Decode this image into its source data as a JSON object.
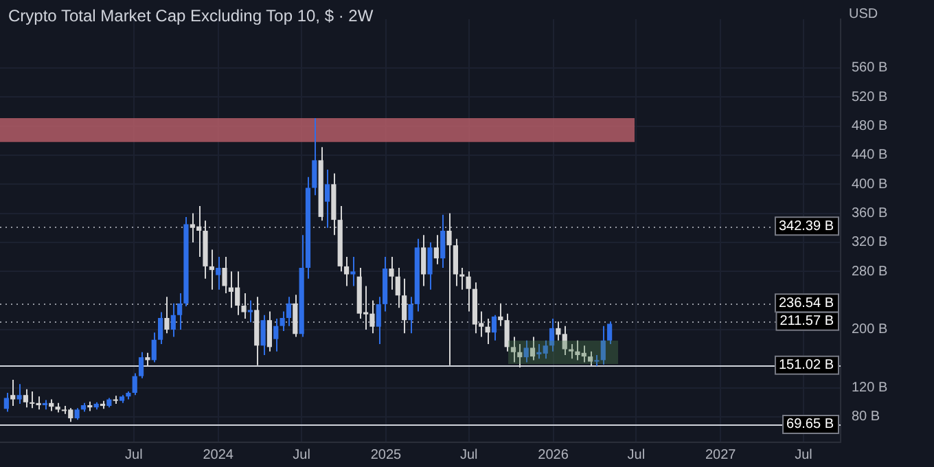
{
  "chart_data": {
    "type": "candlestick",
    "title": "Crypto Total Market Cap Excluding Top 10, $ · 2W",
    "ylabel": "USD",
    "x": [
      "2022-09-26",
      "2022-10-10",
      "2022-10-24",
      "2022-11-07",
      "2022-11-21",
      "2022-12-05",
      "2022-12-19",
      "2023-01-02",
      "2023-01-16",
      "2023-01-30",
      "2023-02-13",
      "2023-02-27",
      "2023-03-13",
      "2023-03-27",
      "2023-04-10",
      "2023-04-24",
      "2023-05-08",
      "2023-05-22",
      "2023-06-05",
      "2023-06-19",
      "2023-07-03",
      "2023-07-17",
      "2023-07-31",
      "2023-08-14",
      "2023-08-28",
      "2023-09-11",
      "2023-09-25",
      "2023-10-09",
      "2023-10-23",
      "2023-11-06",
      "2023-11-20",
      "2023-12-04",
      "2023-12-18",
      "2024-01-01",
      "2024-01-15",
      "2024-01-29",
      "2024-02-12",
      "2024-02-26",
      "2024-03-11",
      "2024-03-25",
      "2024-04-08",
      "2024-04-22",
      "2024-05-06",
      "2024-05-20",
      "2024-06-03",
      "2024-06-17",
      "2024-07-01",
      "2024-07-15",
      "2024-07-29",
      "2024-08-12",
      "2024-08-26",
      "2024-09-09",
      "2024-09-23",
      "2024-10-07",
      "2024-10-21",
      "2024-11-04",
      "2024-11-18",
      "2024-12-02",
      "2024-12-16",
      "2024-12-30",
      "2025-01-13",
      "2025-01-27",
      "2025-02-10",
      "2025-02-24",
      "2025-03-10",
      "2025-03-24",
      "2025-04-07",
      "2025-04-21",
      "2025-05-05",
      "2025-05-19",
      "2025-06-02",
      "2025-06-16",
      "2025-06-30",
      "2025-07-14",
      "2025-07-28",
      "2025-08-11",
      "2025-08-25",
      "2025-09-08",
      "2025-09-22",
      "2025-10-06",
      "2025-10-20",
      "2025-11-03",
      "2025-11-17",
      "2025-12-01",
      "2025-12-15",
      "2025-12-29",
      "2026-01-12",
      "2026-01-26",
      "2026-02-09",
      "2026-02-23",
      "2026-03-09",
      "2026-03-23",
      "2026-04-06",
      "2026-04-20",
      "2026-05-04"
    ],
    "ohlc": [
      [
        91,
        113,
        87,
        106
      ],
      [
        110,
        131,
        95,
        104
      ],
      [
        104,
        125,
        98,
        110
      ],
      [
        110,
        118,
        93,
        100
      ],
      [
        100,
        115,
        92,
        98
      ],
      [
        99,
        108,
        90,
        96
      ],
      [
        96,
        103,
        90,
        99
      ],
      [
        99,
        104,
        88,
        94
      ],
      [
        94,
        99,
        86,
        90
      ],
      [
        90,
        95,
        84,
        88
      ],
      [
        90,
        92,
        73,
        78
      ],
      [
        78,
        92,
        76,
        90
      ],
      [
        90,
        99,
        87,
        96
      ],
      [
        96,
        101,
        88,
        93
      ],
      [
        93,
        100,
        90,
        98
      ],
      [
        98,
        102,
        91,
        95
      ],
      [
        95,
        106,
        93,
        104
      ],
      [
        104,
        109,
        98,
        102
      ],
      [
        102,
        110,
        99,
        108
      ],
      [
        108,
        115,
        104,
        113
      ],
      [
        113,
        140,
        110,
        136
      ],
      [
        136,
        169,
        133,
        162
      ],
      [
        162,
        168,
        150,
        158
      ],
      [
        158,
        196,
        155,
        186
      ],
      [
        186,
        224,
        180,
        216
      ],
      [
        216,
        245,
        195,
        200
      ],
      [
        200,
        236,
        190,
        220
      ],
      [
        220,
        250,
        200,
        236
      ],
      [
        236,
        355,
        232,
        345
      ],
      [
        345,
        360,
        320,
        340
      ],
      [
        342,
        370,
        300,
        336
      ],
      [
        336,
        350,
        270,
        287
      ],
      [
        287,
        310,
        255,
        282
      ],
      [
        275,
        300,
        255,
        285
      ],
      [
        285,
        300,
        250,
        260
      ],
      [
        258,
        280,
        230,
        252
      ],
      [
        258,
        280,
        220,
        233
      ],
      [
        233,
        250,
        215,
        224
      ],
      [
        224,
        240,
        210,
        227
      ],
      [
        227,
        245,
        151,
        178
      ],
      [
        178,
        220,
        165,
        213
      ],
      [
        213,
        225,
        170,
        176
      ],
      [
        187,
        215,
        170,
        205
      ],
      [
        205,
        225,
        198,
        216
      ],
      [
        216,
        245,
        205,
        236
      ],
      [
        236,
        248,
        190,
        194
      ],
      [
        194,
        330,
        190,
        285
      ],
      [
        285,
        410,
        270,
        395
      ],
      [
        395,
        491,
        385,
        433
      ],
      [
        433,
        451,
        350,
        355
      ],
      [
        376,
        420,
        340,
        400
      ],
      [
        400,
        415,
        330,
        351
      ],
      [
        351,
        370,
        280,
        287
      ],
      [
        287,
        300,
        260,
        276
      ],
      [
        276,
        300,
        260,
        280
      ],
      [
        273,
        285,
        215,
        222
      ],
      [
        224,
        260,
        200,
        221
      ],
      [
        222,
        240,
        195,
        204
      ],
      [
        204,
        245,
        180,
        235
      ],
      [
        235,
        300,
        225,
        284
      ],
      [
        284,
        300,
        255,
        273
      ],
      [
        273,
        285,
        230,
        247
      ],
      [
        247,
        270,
        195,
        213
      ],
      [
        213,
        245,
        195,
        235
      ],
      [
        235,
        325,
        225,
        313
      ],
      [
        313,
        330,
        260,
        276
      ],
      [
        276,
        320,
        255,
        313
      ],
      [
        313,
        330,
        290,
        298
      ],
      [
        298,
        358,
        285,
        336
      ],
      [
        336,
        360,
        151,
        316
      ],
      [
        316,
        325,
        260,
        276
      ],
      [
        276,
        285,
        255,
        273
      ],
      [
        273,
        280,
        225,
        256
      ],
      [
        256,
        265,
        195,
        207
      ],
      [
        209,
        225,
        190,
        204
      ],
      [
        204,
        215,
        180,
        196
      ],
      [
        196,
        220,
        185,
        218
      ],
      [
        218,
        236,
        205,
        213
      ],
      [
        213,
        222,
        170,
        176
      ],
      [
        176,
        190,
        155,
        169
      ],
      [
        169,
        180,
        148,
        162
      ],
      [
        162,
        185,
        155,
        175
      ],
      [
        175,
        190,
        158,
        163
      ],
      [
        166,
        180,
        160,
        169
      ],
      [
        167,
        185,
        160,
        178
      ],
      [
        178,
        215,
        170,
        202
      ],
      [
        202,
        211,
        185,
        193
      ],
      [
        194,
        205,
        165,
        173
      ],
      [
        173,
        180,
        160,
        170
      ],
      [
        170,
        185,
        158,
        165
      ],
      [
        168,
        178,
        155,
        163
      ],
      [
        163,
        170,
        150,
        156
      ],
      [
        156,
        165,
        150,
        158
      ],
      [
        158,
        205,
        152,
        185
      ],
      [
        185,
        211,
        180,
        208
      ]
    ],
    "colors": [
      "#2f6fe8",
      "#d6d6d6",
      "#2f6fe8",
      "#d6d6d6",
      "#d6d6d6",
      "#d6d6d6",
      "#2f6fe8",
      "#d6d6d6",
      "#d6d6d6",
      "#d6d6d6",
      "#d6d6d6",
      "#2f6fe8",
      "#2f6fe8",
      "#d6d6d6",
      "#2f6fe8",
      "#d6d6d6",
      "#2f6fe8",
      "#d6d6d6",
      "#2f6fe8",
      "#2f6fe8",
      "#2f6fe8",
      "#2f6fe8",
      "#d6d6d6",
      "#2f6fe8",
      "#2f6fe8",
      "#d6d6d6",
      "#2f6fe8",
      "#2f6fe8",
      "#2f6fe8",
      "#d6d6d6",
      "#d6d6d6",
      "#d6d6d6",
      "#d6d6d6",
      "#2f6fe8",
      "#d6d6d6",
      "#d6d6d6",
      "#d6d6d6",
      "#d6d6d6",
      "#2f6fe8",
      "#d6d6d6",
      "#2f6fe8",
      "#d6d6d6",
      "#2f6fe8",
      "#2f6fe8",
      "#2f6fe8",
      "#d6d6d6",
      "#2f6fe8",
      "#2f6fe8",
      "#2f6fe8",
      "#d6d6d6",
      "#2f6fe8",
      "#d6d6d6",
      "#d6d6d6",
      "#d6d6d6",
      "#2f6fe8",
      "#d6d6d6",
      "#d6d6d6",
      "#d6d6d6",
      "#2f6fe8",
      "#2f6fe8",
      "#d6d6d6",
      "#d6d6d6",
      "#d6d6d6",
      "#2f6fe8",
      "#2f6fe8",
      "#d6d6d6",
      "#2f6fe8",
      "#d6d6d6",
      "#2f6fe8",
      "#d6d6d6",
      "#d6d6d6",
      "#d6d6d6",
      "#d6d6d6",
      "#d6d6d6",
      "#d6d6d6",
      "#d6d6d6",
      "#2f6fe8",
      "#d6d6d6",
      "#d6d6d6",
      "#d6d6d6",
      "#d6d6d6",
      "#2f6fe8",
      "#d6d6d6",
      "#2f6fe8",
      "#2f6fe8",
      "#2f6fe8",
      "#d6d6d6",
      "#d6d6d6",
      "#d6d6d6",
      "#d6d6d6",
      "#d6d6d6",
      "#d6d6d6",
      "#2f6fe8",
      "#2f6fe8",
      "#2f6fe8"
    ],
    "xlim": [
      "2022-09-12",
      "2027-09-20"
    ],
    "xticks": [
      {
        "value": "2023-07-01",
        "label": "Jul"
      },
      {
        "value": "2024-01-01",
        "label": "2024"
      },
      {
        "value": "2024-07-01",
        "label": "Jul"
      },
      {
        "value": "2025-01-01",
        "label": "2025"
      },
      {
        "value": "2025-07-01",
        "label": "Jul"
      },
      {
        "value": "2026-01-01",
        "label": "2026"
      },
      {
        "value": "2026-07-01",
        "label": "Jul"
      },
      {
        "value": "2027-01-01",
        "label": "2027"
      },
      {
        "value": "2027-07-01",
        "label": "Jul"
      }
    ],
    "ylim": [
      45,
      627
    ],
    "yticks": [
      {
        "value": 80,
        "label": "80 B"
      },
      {
        "value": 120,
        "label": "120 B"
      },
      {
        "value": 200,
        "label": "200 B"
      },
      {
        "value": 280,
        "label": "280 B"
      },
      {
        "value": 320,
        "label": "320 B"
      },
      {
        "value": 360,
        "label": "360 B"
      },
      {
        "value": 400,
        "label": "400 B"
      },
      {
        "value": 440,
        "label": "440 B"
      },
      {
        "value": 480,
        "label": "480 B"
      },
      {
        "value": 520,
        "label": "520 B"
      },
      {
        "value": 560,
        "label": "560 B"
      }
    ],
    "ref_lines": [
      {
        "axis": "y",
        "value": 342.39,
        "label": "342.39 B",
        "line_style": "dotted",
        "color": "#9598a1"
      },
      {
        "axis": "y",
        "value": 236.54,
        "label": "236.54 B",
        "line_style": "dotted",
        "color": "#9598a1"
      },
      {
        "axis": "y",
        "value": 211.57,
        "label": "211.57 B",
        "line_style": "dotted",
        "color": "#9598a1"
      },
      {
        "axis": "y",
        "value": 151.02,
        "label": "151.02 B",
        "line_style": "solid",
        "color": "#d1d4dc"
      },
      {
        "axis": "y",
        "value": 69.65,
        "label": "69.65 B",
        "line_style": "solid",
        "color": "#d1d4dc"
      }
    ],
    "bands": [
      {
        "axis": "y",
        "from": 458,
        "to": 491,
        "color": "#b35c66"
      }
    ],
    "grid": true,
    "legend": false
  }
}
